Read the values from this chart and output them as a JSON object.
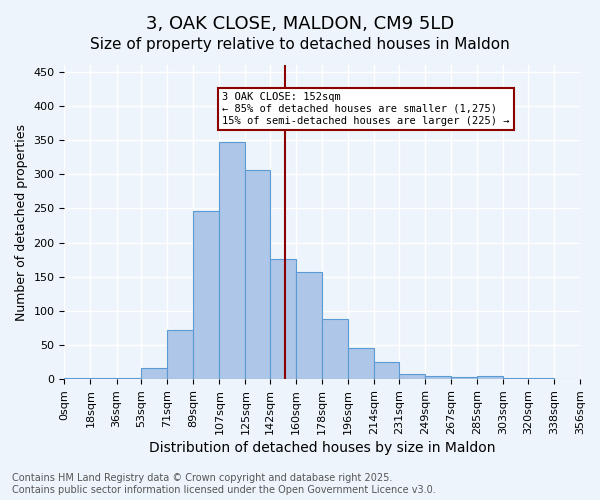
{
  "title": "3, OAK CLOSE, MALDON, CM9 5LD",
  "subtitle": "Size of property relative to detached houses in Maldon",
  "xlabel": "Distribution of detached houses by size in Maldon",
  "ylabel": "Number of detached properties",
  "bin_edges": [
    0,
    18,
    36,
    53,
    71,
    89,
    107,
    125,
    142,
    160,
    178,
    196,
    214,
    231,
    249,
    267,
    285,
    303,
    320,
    338,
    356
  ],
  "bin_labels": [
    "0sqm",
    "18sqm",
    "36sqm",
    "53sqm",
    "71sqm",
    "89sqm",
    "107sqm",
    "125sqm",
    "142sqm",
    "160sqm",
    "178sqm",
    "196sqm",
    "214sqm",
    "231sqm",
    "249sqm",
    "267sqm",
    "285sqm",
    "303sqm",
    "320sqm",
    "338sqm",
    "356sqm"
  ],
  "counts": [
    2,
    2,
    2,
    17,
    72,
    246,
    347,
    307,
    176,
    157,
    88,
    45,
    25,
    7,
    5,
    3,
    4,
    2,
    2,
    1
  ],
  "bar_color": "#AEC6E8",
  "bar_edge_color": "#5B9BD5",
  "property_line_x": 152,
  "property_line_color": "#8B0000",
  "annotation_text": "3 OAK CLOSE: 152sqm\n← 85% of detached houses are smaller (1,275)\n15% of semi-detached houses are larger (225) →",
  "annotation_box_color": "#8B0000",
  "ylim": [
    0,
    460
  ],
  "yticks": [
    0,
    50,
    100,
    150,
    200,
    250,
    300,
    350,
    400,
    450
  ],
  "background_color": "#EEF4FB",
  "grid_color": "#FFFFFF",
  "footer_text": "Contains HM Land Registry data © Crown copyright and database right 2025.\nContains public sector information licensed under the Open Government Licence v3.0.",
  "title_fontsize": 13,
  "subtitle_fontsize": 11,
  "xlabel_fontsize": 10,
  "ylabel_fontsize": 9,
  "tick_fontsize": 8,
  "footer_fontsize": 7
}
